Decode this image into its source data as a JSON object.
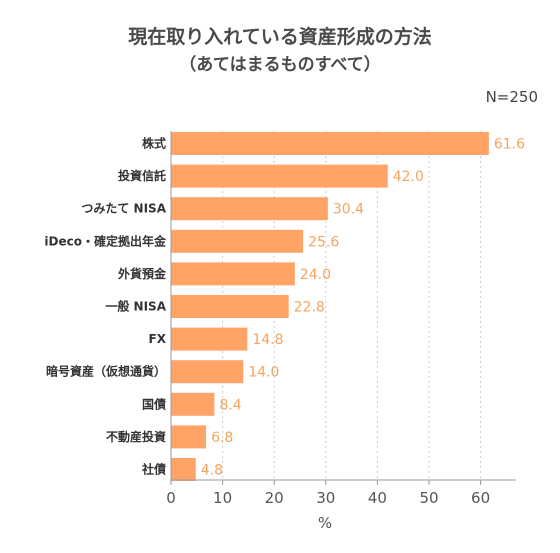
{
  "chart_data": {
    "type": "bar",
    "orientation": "horizontal",
    "title": "現在取り入れている資産形成の方法",
    "subtitle": "（あてはまるものすべて）",
    "note": "N=250",
    "xlabel": "%",
    "ylabel": "",
    "xlim": [
      0,
      65
    ],
    "xticks": [
      0,
      10,
      20,
      30,
      40,
      50,
      60
    ],
    "grid": true,
    "bar_color": "#FFA366",
    "label_color": "#F4A460",
    "categories": [
      "株式",
      "投資信託",
      "つみたて NISA",
      "iDeco・確定拠出年金",
      "外貨預金",
      "一般 NISA",
      "FX",
      "暗号資産（仮想通貨）",
      "国債",
      "不動産投資",
      "社債"
    ],
    "values": [
      61.6,
      42.0,
      30.4,
      25.6,
      24.0,
      22.8,
      14.8,
      14.0,
      8.4,
      6.8,
      4.8
    ],
    "value_labels": [
      "61.6",
      "42.0",
      "30.4",
      "25.6",
      "24.0",
      "22.8",
      "14.8",
      "14.0",
      "8.4",
      "6.8",
      "4.8"
    ]
  }
}
